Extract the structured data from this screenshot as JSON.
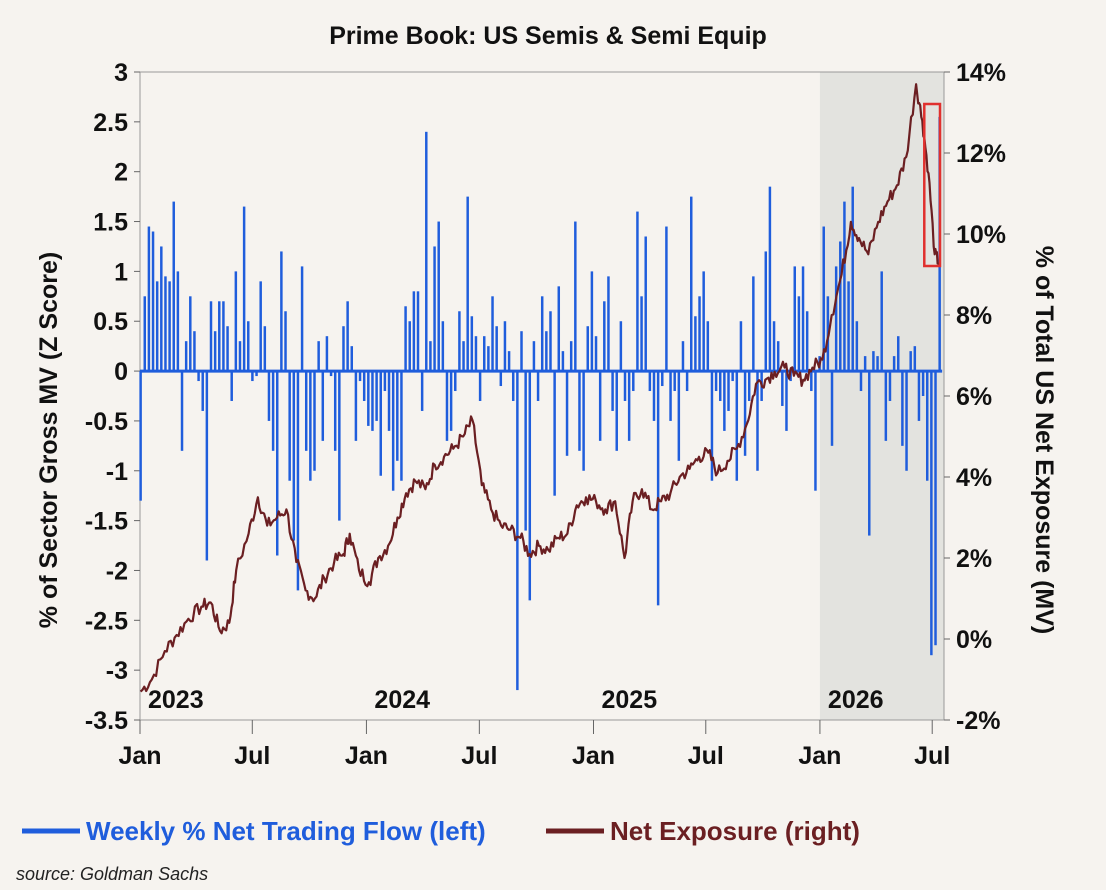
{
  "chart_data": {
    "type": "bar+line",
    "title": "Prime Book: US Semis & Semi Equip",
    "y_left_label": "% of Sector Gross MV (Z Score)",
    "y_right_label": "% of Total US Net Exposure (MV)",
    "y_left_ticks": [
      "3",
      "2.5",
      "2",
      "1.5",
      "1",
      "0.5",
      "0",
      "-0.5",
      "-1",
      "-1.5",
      "-2",
      "-2.5",
      "-3",
      "-3.5"
    ],
    "y_left_range": [
      -3.5,
      3
    ],
    "y_right_ticks": [
      "14%",
      "12%",
      "10%",
      "8%",
      "6%",
      "4%",
      "2%",
      "0%",
      "-2%"
    ],
    "y_right_range": [
      -2,
      14
    ],
    "x_month_ticks": [
      "Jan",
      "Jul",
      "Jan",
      "Jul",
      "Jan",
      "Jul",
      "Jan",
      "Jul"
    ],
    "x_year_labels": [
      "2023",
      "2024",
      "2025",
      "2026"
    ],
    "x_range": [
      "2023-01-01",
      "2026-07-20"
    ],
    "shaded_region": [
      "2026-01-01",
      "2026-07-20"
    ],
    "highlight_box": [
      "2026-06-15",
      "2026-07-20"
    ],
    "series": [
      {
        "name": "Weekly % Net Trading Flow (left)",
        "type": "bar",
        "color": "#1f5ddc",
        "values": [
          -1.3,
          0.75,
          1.45,
          1.4,
          0.9,
          1.25,
          0.95,
          0.9,
          1.7,
          1.0,
          -0.8,
          0.3,
          0.75,
          0.4,
          -0.1,
          -0.4,
          -1.9,
          0.7,
          0.4,
          0.7,
          0.7,
          0.45,
          -0.3,
          1.0,
          0.3,
          1.65,
          0.5,
          -0.1,
          -0.05,
          0.9,
          0.45,
          -0.5,
          -0.8,
          -1.85,
          1.2,
          0.6,
          -1.1,
          -1.7,
          -2.2,
          1.05,
          -0.8,
          -1.1,
          -1.0,
          0.3,
          -0.7,
          0.35,
          -0.05,
          -0.8,
          -1.5,
          0.45,
          0.7,
          0.25,
          -0.7,
          -0.1,
          -0.3,
          -0.55,
          -0.6,
          -0.5,
          -1.05,
          -0.2,
          -0.6,
          -1.2,
          -0.9,
          -1.1,
          0.65,
          0.5,
          0.8,
          0.8,
          -0.4,
          2.4,
          0.3,
          1.25,
          1.5,
          0.5,
          -0.7,
          -0.6,
          -0.2,
          0.6,
          0.3,
          1.75,
          0.55,
          0.35,
          -0.3,
          0.35,
          0.25,
          0.75,
          0.45,
          -0.15,
          0.5,
          0.2,
          -0.3,
          -3.2,
          0.4,
          -1.6,
          -2.3,
          0.3,
          -0.3,
          0.75,
          0.4,
          0.6,
          -1.25,
          0.85,
          0.2,
          -0.85,
          0.3,
          1.5,
          -0.8,
          -1.0,
          0.45,
          1.0,
          0.35,
          -0.7,
          0.7,
          0.95,
          -0.4,
          -0.8,
          0.5,
          -0.3,
          -0.7,
          -0.2,
          1.6,
          0.75,
          1.35,
          -0.2,
          -0.5,
          -2.35,
          -0.15,
          1.45,
          -0.5,
          -0.2,
          -0.9,
          0.3,
          -0.2,
          1.75,
          0.55,
          0.75,
          1.0,
          0.5,
          -1.1,
          -0.2,
          -0.3,
          -0.6,
          -0.4,
          -0.1,
          -1.1,
          0.5,
          -0.85,
          -0.3,
          0.95,
          -1.0,
          -0.3,
          1.2,
          1.85,
          0.5,
          0.3,
          -0.35,
          -0.6,
          -0.1,
          1.05,
          0.75,
          1.05,
          0.6,
          -0.2,
          -1.2,
          0.15,
          1.45,
          0.75,
          -0.75,
          1.05,
          1.3,
          1.7,
          0.9,
          1.85,
          0.5,
          -0.2,
          0.15,
          -1.65,
          0.2,
          0.15,
          1.0,
          -0.7,
          -0.3,
          0.15,
          0.35,
          -0.75,
          -1.0,
          0.2,
          0.25,
          -0.5,
          -0.25,
          -1.1,
          -2.85,
          -2.75,
          2.55
        ]
      },
      {
        "name": "Net Exposure (right)",
        "type": "line",
        "color": "#6b1f22",
        "points": [
          [
            "2023-01-02",
            -1.3
          ],
          [
            "2023-01-20",
            -1.0
          ],
          [
            "2023-02-10",
            -0.3
          ],
          [
            "2023-03-01",
            0.1
          ],
          [
            "2023-03-20",
            0.5
          ],
          [
            "2023-04-10",
            0.8
          ],
          [
            "2023-04-25",
            0.9
          ],
          [
            "2023-05-10",
            0.2
          ],
          [
            "2023-05-25",
            0.4
          ],
          [
            "2023-06-05",
            1.7
          ],
          [
            "2023-06-25",
            2.6
          ],
          [
            "2023-07-10",
            3.5
          ],
          [
            "2023-07-25",
            2.8
          ],
          [
            "2023-08-10",
            3.0
          ],
          [
            "2023-08-25",
            3.2
          ],
          [
            "2023-09-10",
            1.9
          ],
          [
            "2023-09-25",
            1.2
          ],
          [
            "2023-10-10",
            1.0
          ],
          [
            "2023-10-25",
            1.5
          ],
          [
            "2023-11-10",
            1.9
          ],
          [
            "2023-11-25",
            2.1
          ],
          [
            "2023-12-05",
            2.6
          ],
          [
            "2023-12-20",
            1.7
          ],
          [
            "2024-01-05",
            1.4
          ],
          [
            "2024-01-20",
            2.0
          ],
          [
            "2024-02-05",
            2.3
          ],
          [
            "2024-02-20",
            3.0
          ],
          [
            "2024-03-05",
            3.6
          ],
          [
            "2024-03-20",
            3.9
          ],
          [
            "2024-04-05",
            3.7
          ],
          [
            "2024-04-20",
            4.3
          ],
          [
            "2024-05-05",
            4.5
          ],
          [
            "2024-05-20",
            4.7
          ],
          [
            "2024-06-05",
            5.0
          ],
          [
            "2024-06-20",
            5.4
          ],
          [
            "2024-07-05",
            3.8
          ],
          [
            "2024-07-20",
            3.2
          ],
          [
            "2024-08-05",
            2.8
          ],
          [
            "2024-08-20",
            2.7
          ],
          [
            "2024-09-05",
            2.5
          ],
          [
            "2024-09-20",
            2.1
          ],
          [
            "2024-10-05",
            2.3
          ],
          [
            "2024-10-20",
            2.2
          ],
          [
            "2024-11-05",
            2.5
          ],
          [
            "2024-11-20",
            2.6
          ],
          [
            "2024-12-05",
            3.3
          ],
          [
            "2024-12-20",
            3.5
          ],
          [
            "2025-01-05",
            3.4
          ],
          [
            "2025-01-20",
            3.2
          ],
          [
            "2025-02-05",
            3.4
          ],
          [
            "2025-02-20",
            2.0
          ],
          [
            "2025-03-05",
            3.4
          ],
          [
            "2025-03-20",
            3.7
          ],
          [
            "2025-04-05",
            3.2
          ],
          [
            "2025-04-20",
            3.4
          ],
          [
            "2025-05-05",
            3.6
          ],
          [
            "2025-05-20",
            4.0
          ],
          [
            "2025-06-05",
            4.2
          ],
          [
            "2025-06-20",
            4.5
          ],
          [
            "2025-07-05",
            4.6
          ],
          [
            "2025-07-20",
            4.1
          ],
          [
            "2025-08-05",
            4.4
          ],
          [
            "2025-08-20",
            4.7
          ],
          [
            "2025-09-05",
            5.3
          ],
          [
            "2025-09-20",
            6.3
          ],
          [
            "2025-10-05",
            6.4
          ],
          [
            "2025-10-20",
            6.6
          ],
          [
            "2025-11-05",
            6.7
          ],
          [
            "2025-11-20",
            6.5
          ],
          [
            "2025-12-05",
            6.4
          ],
          [
            "2025-12-20",
            6.7
          ],
          [
            "2026-01-05",
            6.9
          ],
          [
            "2026-01-20",
            8.0
          ],
          [
            "2026-02-05",
            9.0
          ],
          [
            "2026-02-20",
            10.3
          ],
          [
            "2026-03-05",
            9.9
          ],
          [
            "2026-03-20",
            9.5
          ],
          [
            "2026-04-05",
            10.3
          ],
          [
            "2026-04-20",
            10.8
          ],
          [
            "2026-05-05",
            11.2
          ],
          [
            "2026-05-20",
            11.9
          ],
          [
            "2026-06-05",
            13.7
          ],
          [
            "2026-06-15",
            12.8
          ],
          [
            "2026-06-25",
            11.5
          ],
          [
            "2026-07-05",
            9.5
          ],
          [
            "2026-07-12",
            9.3
          ]
        ]
      }
    ],
    "legend_position": "bottom"
  },
  "legend": {
    "flow_label": "Weekly % Net Trading Flow (left)",
    "exposure_label": "Net Exposure (right)"
  },
  "source": "source: Goldman Sachs"
}
